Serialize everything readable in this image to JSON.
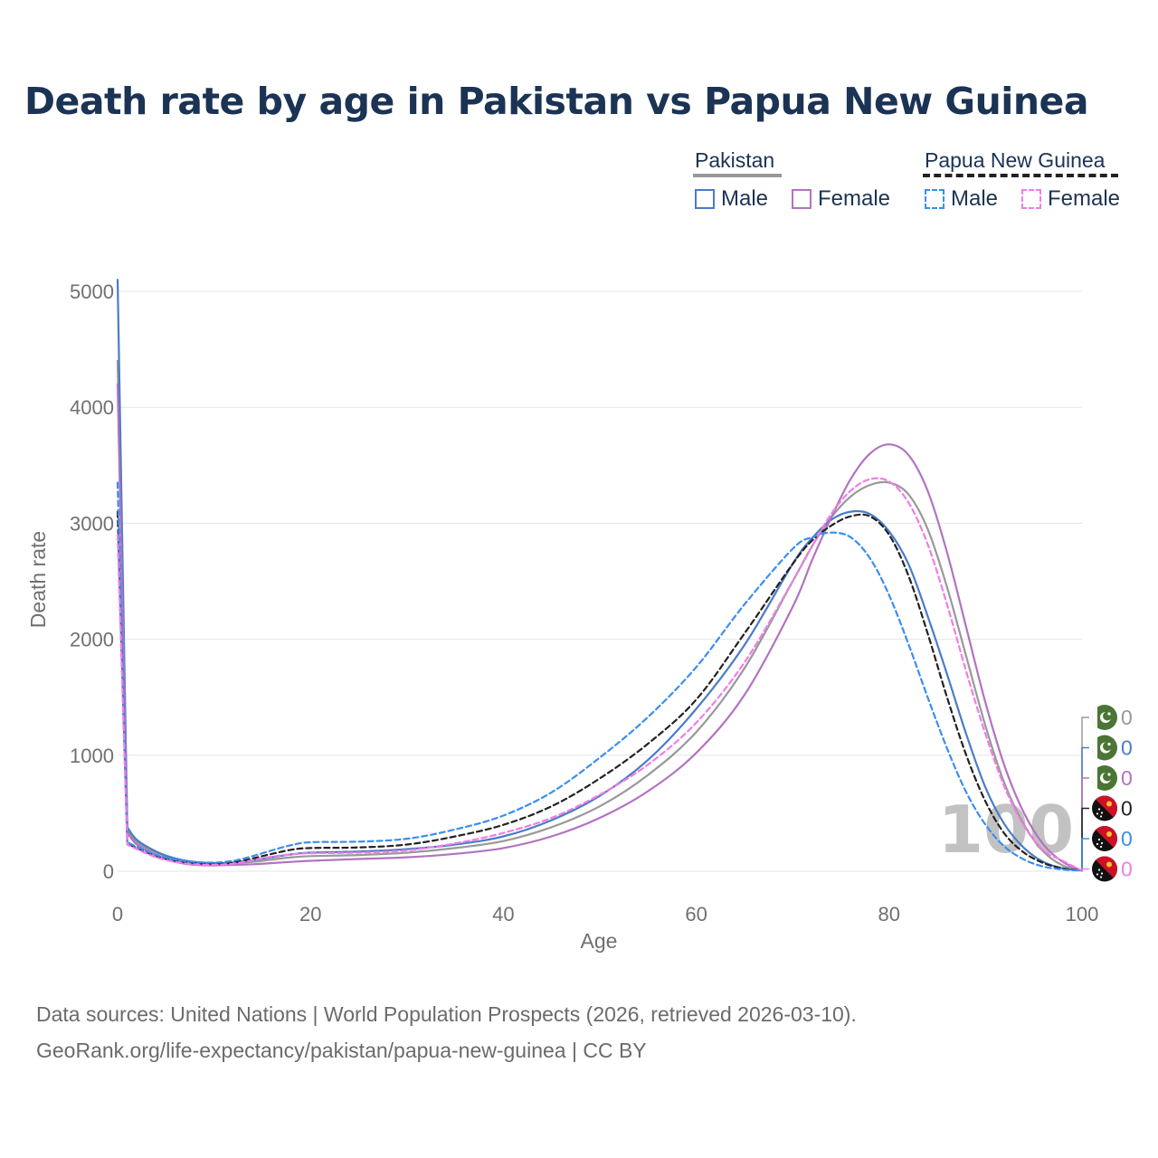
{
  "title": "Death rate by age in Pakistan vs Papua New Guinea",
  "legend": {
    "groups": [
      {
        "name": "Pakistan",
        "line_color": "#999999",
        "line_style": "solid",
        "items": [
          {
            "label": "Male",
            "color": "#4a7cc7",
            "style": "solid"
          },
          {
            "label": "Female",
            "color": "#b273c0",
            "style": "solid"
          }
        ]
      },
      {
        "name": "Papua New Guinea",
        "line_color": "#222222",
        "line_style": "dashed",
        "items": [
          {
            "label": "Male",
            "color": "#3b8ef0",
            "style": "dashed"
          },
          {
            "label": "Female",
            "color": "#f07de8",
            "style": "dashed"
          }
        ]
      }
    ]
  },
  "colors": {
    "pakistan_total": "#999999",
    "pakistan_male": "#4a7cc7",
    "pakistan_female": "#b273c0",
    "png_total": "#222222",
    "png_male": "#3b8ef0",
    "png_female": "#f07de8",
    "grid": "#e6e6e6",
    "axis_text": "#707070",
    "watermark": "#c2c2c2",
    "pakistan_flag": "#4a7535",
    "png_flag_red": "#cc1126"
  },
  "chart_data": {
    "type": "line",
    "xlabel": "Age",
    "ylabel": "Death rate",
    "xlim": [
      0,
      100
    ],
    "ylim": [
      0,
      5000
    ],
    "xticks": [
      0,
      20,
      40,
      60,
      80,
      100
    ],
    "yticks": [
      0,
      1000,
      2000,
      3000,
      4000,
      5000
    ],
    "grid": true,
    "watermark": "100",
    "series": [
      {
        "name": "Pakistan Total",
        "country": "Pakistan",
        "sex": "Total",
        "style": "solid",
        "color_key": "pakistan_total",
        "x": [
          0,
          1,
          2,
          4,
          6,
          8,
          10,
          12,
          14,
          16,
          18,
          20,
          25,
          30,
          35,
          40,
          45,
          50,
          55,
          60,
          65,
          70,
          72,
          74,
          76,
          78,
          80,
          82,
          84,
          86,
          88,
          90,
          92,
          94,
          96,
          98,
          100
        ],
        "y": [
          4400,
          350,
          250,
          160,
          100,
          75,
          65,
          70,
          80,
          100,
          120,
          130,
          140,
          160,
          200,
          260,
          380,
          560,
          830,
          1200,
          1750,
          2500,
          2800,
          3050,
          3230,
          3330,
          3350,
          3250,
          2950,
          2450,
          1850,
          1250,
          750,
          400,
          170,
          50,
          5
        ]
      },
      {
        "name": "Pakistan Male",
        "country": "Pakistan",
        "sex": "Male",
        "style": "solid",
        "color_key": "pakistan_male",
        "x": [
          0,
          1,
          2,
          4,
          6,
          8,
          10,
          12,
          14,
          16,
          18,
          20,
          25,
          30,
          35,
          40,
          45,
          50,
          55,
          60,
          65,
          70,
          72,
          74,
          76,
          78,
          80,
          82,
          84,
          86,
          88,
          90,
          92,
          94,
          96,
          98,
          100
        ],
        "y": [
          5100,
          380,
          270,
          170,
          110,
          80,
          70,
          75,
          95,
          120,
          145,
          160,
          170,
          190,
          230,
          300,
          440,
          650,
          960,
          1400,
          1950,
          2650,
          2870,
          3030,
          3100,
          3080,
          2930,
          2650,
          2200,
          1700,
          1180,
          720,
          400,
          200,
          80,
          25,
          5
        ]
      },
      {
        "name": "Pakistan Female",
        "country": "Pakistan",
        "sex": "Female",
        "style": "solid",
        "color_key": "pakistan_female",
        "x": [
          0,
          1,
          2,
          4,
          6,
          8,
          10,
          12,
          14,
          16,
          18,
          20,
          25,
          30,
          35,
          40,
          45,
          50,
          55,
          60,
          65,
          70,
          72,
          74,
          76,
          78,
          80,
          82,
          84,
          86,
          88,
          90,
          92,
          94,
          96,
          98,
          100
        ],
        "y": [
          4200,
          330,
          230,
          140,
          80,
          55,
          50,
          55,
          60,
          70,
          80,
          90,
          105,
          120,
          150,
          200,
          300,
          460,
          690,
          1020,
          1520,
          2280,
          2680,
          3050,
          3380,
          3600,
          3680,
          3590,
          3280,
          2750,
          2100,
          1450,
          900,
          500,
          230,
          80,
          5
        ]
      },
      {
        "name": "Papua New Guinea Total",
        "country": "Papua New Guinea",
        "sex": "Total",
        "style": "dashed",
        "color_key": "png_total",
        "x": [
          0,
          1,
          2,
          4,
          6,
          8,
          10,
          12,
          14,
          16,
          18,
          20,
          25,
          30,
          35,
          40,
          45,
          50,
          55,
          60,
          65,
          70,
          72,
          74,
          76,
          78,
          80,
          82,
          84,
          86,
          88,
          90,
          92,
          94,
          96,
          98,
          100
        ],
        "y": [
          3100,
          240,
          200,
          130,
          90,
          70,
          65,
          75,
          110,
          150,
          185,
          200,
          205,
          230,
          300,
          400,
          560,
          800,
          1100,
          1480,
          2050,
          2650,
          2850,
          2980,
          3060,
          3060,
          2900,
          2550,
          2050,
          1500,
          1000,
          600,
          320,
          160,
          70,
          25,
          5
        ]
      },
      {
        "name": "Papua New Guinea Male",
        "country": "Papua New Guinea",
        "sex": "Male",
        "style": "dashed",
        "color_key": "png_male",
        "x": [
          0,
          1,
          2,
          4,
          6,
          8,
          10,
          12,
          14,
          16,
          18,
          20,
          25,
          30,
          35,
          40,
          45,
          50,
          55,
          60,
          65,
          70,
          72,
          74,
          76,
          78,
          80,
          82,
          84,
          86,
          88,
          90,
          92,
          94,
          96,
          98,
          100
        ],
        "y": [
          3350,
          250,
          210,
          140,
          100,
          80,
          75,
          90,
          130,
          180,
          225,
          250,
          255,
          280,
          360,
          480,
          680,
          980,
          1330,
          1760,
          2300,
          2780,
          2880,
          2920,
          2880,
          2700,
          2380,
          1960,
          1500,
          1060,
          680,
          400,
          210,
          100,
          40,
          15,
          5
        ]
      },
      {
        "name": "Papua New Guinea Female",
        "country": "Papua New Guinea",
        "sex": "Female",
        "style": "dashed",
        "color_key": "png_female",
        "x": [
          0,
          1,
          2,
          4,
          6,
          8,
          10,
          12,
          14,
          16,
          18,
          20,
          25,
          30,
          35,
          40,
          45,
          50,
          55,
          60,
          65,
          70,
          72,
          74,
          76,
          78,
          80,
          82,
          84,
          86,
          88,
          90,
          92,
          94,
          96,
          98,
          100
        ],
        "y": [
          2900,
          230,
          190,
          120,
          80,
          60,
          55,
          65,
          95,
          125,
          145,
          155,
          160,
          180,
          240,
          330,
          460,
          660,
          920,
          1280,
          1800,
          2500,
          2800,
          3080,
          3280,
          3380,
          3360,
          3180,
          2820,
          2300,
          1720,
          1180,
          720,
          390,
          180,
          90,
          5
        ]
      }
    ],
    "end_labels": [
      {
        "series": "Pakistan Total",
        "value": "0",
        "flag": "pakistan",
        "color_key": "pakistan_total"
      },
      {
        "series": "Pakistan Male",
        "value": "0",
        "flag": "pakistan",
        "color_key": "pakistan_male"
      },
      {
        "series": "Pakistan Female",
        "value": "0",
        "flag": "pakistan",
        "color_key": "pakistan_female"
      },
      {
        "series": "Papua New Guinea Total",
        "value": "0",
        "flag": "png",
        "color_key": "png_total"
      },
      {
        "series": "Papua New Guinea Male",
        "value": "0",
        "flag": "png",
        "color_key": "png_male"
      },
      {
        "series": "Papua New Guinea Female",
        "value": "0",
        "flag": "png",
        "color_key": "png_female"
      }
    ]
  },
  "source": {
    "line1": "Data sources: United Nations | World Population Prospects (2026, retrieved 2026-03-10).",
    "line2": "GeoRank.org/life-expectancy/pakistan/papua-new-guinea | CC BY"
  }
}
